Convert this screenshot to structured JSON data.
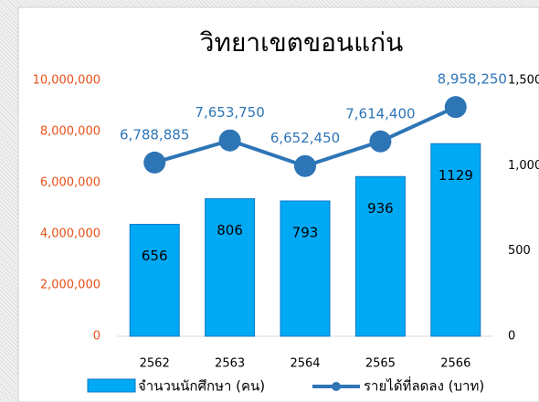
{
  "chart_data": {
    "type": "bar-line",
    "title": "วิทยาเขตขอนแก่น",
    "categories": [
      "2562",
      "2563",
      "2564",
      "2565",
      "2566"
    ],
    "series": [
      {
        "name": "จำนวนนักศึกษา (คน)",
        "type": "bar",
        "axis": "y2",
        "color": "#00a9f4",
        "values": [
          656,
          806,
          793,
          936,
          1129
        ]
      },
      {
        "name": "รายได้ที่ลดลง (บาท)",
        "type": "line",
        "axis": "y",
        "color": "#2e75b6",
        "values": [
          6788885,
          7653750,
          6652450,
          7614400,
          8958250
        ],
        "value_labels": [
          "6,788,885",
          "7,653,750",
          "6,652,450",
          "7,614,400",
          "8,958,250"
        ]
      }
    ],
    "ylim": [
      0,
      10000000
    ],
    "yticks": [
      0,
      {
        "value": 2000000,
        "label": "2,000,000"
      },
      {
        "value": 4000000,
        "label": "4,000,000"
      },
      {
        "value": 6000000,
        "label": "6,000,000"
      },
      {
        "value": 8000000,
        "label": "8,000,000"
      },
      {
        "value": 10000000,
        "label": "10,000,000"
      }
    ],
    "y2lim": [
      0,
      1500
    ],
    "y2ticks": [
      0,
      500,
      {
        "value": 1000,
        "label": "1,000"
      },
      {
        "value": 1500,
        "label": "1,500"
      }
    ],
    "grid": false,
    "legend": "bottom"
  }
}
